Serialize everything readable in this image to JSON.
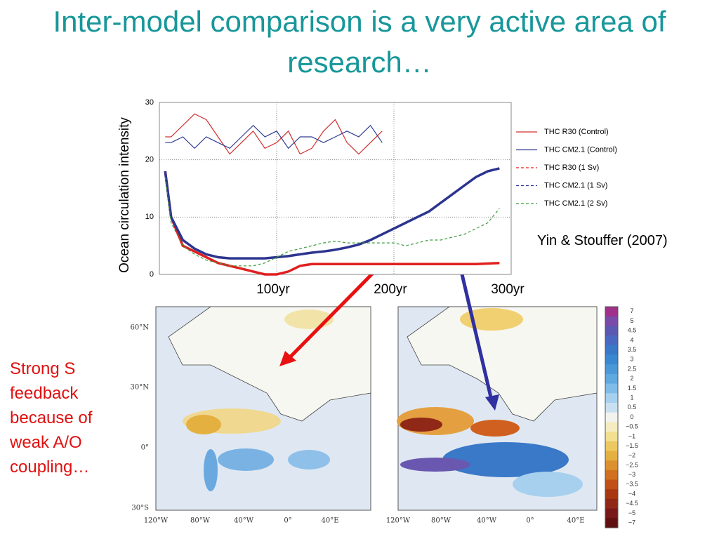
{
  "title": "Inter-model comparison is a very active area of research…",
  "citation": "Yin & Stouffer (2007)",
  "annotation": "Strong S feedback because of weak A/O coupling…",
  "chart_data": {
    "type": "line",
    "y_label": "Ocean circulation intensity",
    "x": [
      5,
      10,
      20,
      30,
      40,
      50,
      60,
      70,
      80,
      90,
      100,
      110,
      120,
      130,
      140,
      150,
      160,
      170,
      180,
      190,
      200,
      210,
      220,
      230,
      240,
      250,
      260,
      270,
      280,
      290
    ],
    "xlim": [
      0,
      300
    ],
    "xticks": [
      {
        "value": 100,
        "label": "100yr"
      },
      {
        "value": 200,
        "label": "200yr"
      },
      {
        "value": 300,
        "label": "300yr"
      }
    ],
    "ylim": [
      0,
      30
    ],
    "yticks": [
      0,
      10,
      20,
      30
    ],
    "grid": true,
    "legend": "right",
    "series": [
      {
        "name": "THC R30 (Control)",
        "color": "#d03030",
        "dash": false,
        "highlight": false,
        "values": [
          24,
          24,
          26,
          28,
          27,
          24,
          21,
          23,
          25,
          22,
          23,
          25,
          21,
          22,
          25,
          27,
          23,
          21,
          23,
          25,
          null,
          null,
          null,
          null,
          null,
          null,
          null,
          null,
          null,
          null
        ]
      },
      {
        "name": "THC CM2.1 (Control)",
        "color": "#303c90",
        "dash": false,
        "highlight": false,
        "values": [
          23,
          23,
          24,
          22,
          24,
          23,
          22,
          24,
          26,
          24,
          25,
          22,
          24,
          24,
          23,
          24,
          25,
          24,
          26,
          23,
          null,
          null,
          null,
          null,
          null,
          null,
          null,
          null,
          null,
          null
        ]
      },
      {
        "name": "THC R30 (1 Sv)",
        "color": "#e02020",
        "dash": true,
        "highlight": true,
        "values": [
          18,
          10,
          5,
          4,
          3,
          2,
          1.5,
          1,
          0.5,
          0,
          0,
          0.5,
          1.5,
          1.8,
          1.8,
          1.8,
          1.8,
          1.8,
          1.8,
          1.8,
          1.8,
          1.8,
          1.8,
          1.8,
          1.8,
          1.8,
          1.8,
          1.8,
          1.9,
          2
        ]
      },
      {
        "name": "THC CM2.1 (1 Sv)",
        "color": "#2c3590",
        "dash": true,
        "highlight": true,
        "values": [
          18,
          10,
          6,
          4.5,
          3.5,
          3,
          2.8,
          2.8,
          2.8,
          2.8,
          3,
          3.2,
          3.5,
          3.8,
          4,
          4.3,
          4.7,
          5.2,
          6,
          7,
          8,
          9,
          10,
          11,
          12.5,
          14,
          15.5,
          17,
          18,
          18.5
        ]
      },
      {
        "name": "THC CM2.1 (2 Sv)",
        "color": "#3a9a3a",
        "dash": true,
        "highlight": false,
        "values": [
          17,
          9,
          5,
          3.5,
          2.5,
          2,
          1.5,
          1.5,
          1.5,
          2,
          3,
          4,
          4.5,
          5,
          5.5,
          5.8,
          5.5,
          5.5,
          5.5,
          5.5,
          5.5,
          5,
          5.5,
          6,
          6,
          6.5,
          7,
          8,
          9,
          11.5
        ]
      }
    ]
  },
  "maps": {
    "lat_labels": [
      "60°N",
      "30°N",
      "0°",
      "30°S"
    ],
    "lon_labels": [
      "120°W",
      "80°W",
      "40°W",
      "0°",
      "40°E"
    ]
  },
  "colorbar": {
    "labels": [
      "7",
      "5",
      "4.5",
      "4",
      "3.5",
      "3",
      "2.5",
      "2",
      "1.5",
      "1",
      "0.5",
      "0",
      "−0.5",
      "−1",
      "−1.5",
      "−2",
      "−2.5",
      "−3",
      "−3.5",
      "−4",
      "−4.5",
      "−5",
      "−7"
    ],
    "colors": [
      "#a0308a",
      "#7a4aa8",
      "#5a58b0",
      "#4a68c0",
      "#3a78c8",
      "#3a88d0",
      "#4a98d8",
      "#60a8e0",
      "#80bce8",
      "#a6d0ee",
      "#c8e0f2",
      "#f2f2ee",
      "#f4ecc0",
      "#f2e090",
      "#ecc860",
      "#e4b040",
      "#dc9030",
      "#d07020",
      "#c05018",
      "#a83810",
      "#902818",
      "#781818",
      "#601010"
    ]
  }
}
